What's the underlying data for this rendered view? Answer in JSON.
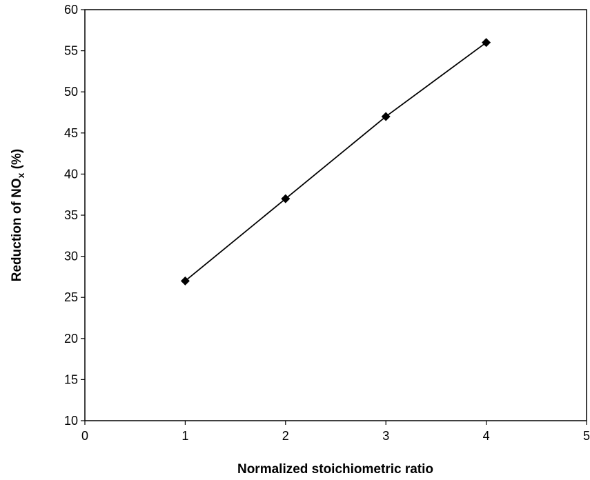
{
  "chart_data": {
    "type": "line",
    "title": "",
    "xlabel": "Normalized stoichiometric ratio",
    "ylabel": {
      "main": "Reduction of NO",
      "subscript": "x",
      "suffix": " (%)"
    },
    "xlim": [
      0,
      5
    ],
    "ylim": [
      10,
      60
    ],
    "x_ticks": [
      0,
      1,
      2,
      3,
      4,
      5
    ],
    "y_ticks": [
      10,
      15,
      20,
      25,
      30,
      35,
      40,
      45,
      50,
      55,
      60
    ],
    "grid": false,
    "legend": "none",
    "marker": "diamond",
    "series": [
      {
        "color": "#000000",
        "x": [
          1,
          2,
          3,
          4
        ],
        "y": [
          27,
          37,
          47,
          56
        ]
      }
    ]
  }
}
